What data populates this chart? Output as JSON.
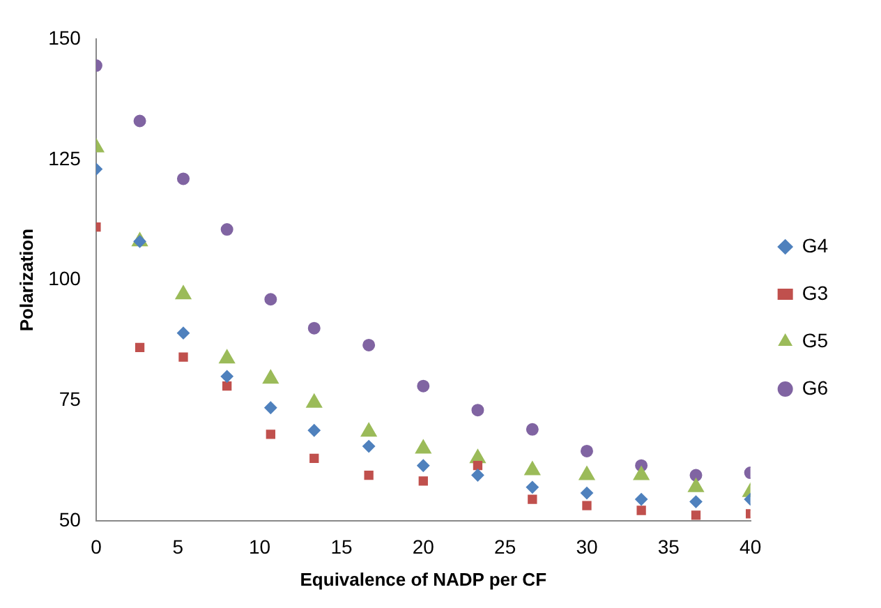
{
  "chart_data": {
    "type": "scatter",
    "xlabel": "Equivalence of NADP per CF",
    "ylabel": "Polarization",
    "x": [
      0,
      2.67,
      5.33,
      8,
      10.67,
      13.33,
      16.67,
      20,
      23.33,
      26.67,
      30,
      33.33,
      36.67,
      40
    ],
    "xlim": [
      0,
      40
    ],
    "xticks": [
      0,
      5,
      10,
      15,
      20,
      25,
      30,
      35,
      40
    ],
    "ylim": [
      50,
      150
    ],
    "yticks": [
      50,
      75,
      100,
      125,
      150
    ],
    "grid": false,
    "legend": "right",
    "series": [
      {
        "name": "G4",
        "color": "#4f81bd",
        "marker": "diamond",
        "values": [
          123,
          108,
          89,
          80,
          73.5,
          68.8,
          65.5,
          61.5,
          59.5,
          57,
          55.8,
          54.5,
          54,
          54.5
        ]
      },
      {
        "name": "G3",
        "color": "#c0504d",
        "marker": "square",
        "values": [
          111,
          86,
          84,
          78,
          68,
          63,
          59.5,
          58.3,
          61.5,
          54.5,
          53.2,
          52.2,
          51.2,
          51.5
        ]
      },
      {
        "name": "G5",
        "color": "#9bbb59",
        "marker": "triangle",
        "values": [
          127.5,
          108,
          97,
          83.7,
          79.5,
          74.5,
          68.5,
          65,
          63,
          60.5,
          59.5,
          59.5,
          57,
          56
        ]
      },
      {
        "name": "G6",
        "color": "#8064a2",
        "marker": "circle",
        "values": [
          144.5,
          133,
          121,
          110.5,
          96,
          90,
          86.5,
          78,
          73,
          69,
          64.5,
          61.5,
          59.5,
          60
        ]
      }
    ]
  }
}
